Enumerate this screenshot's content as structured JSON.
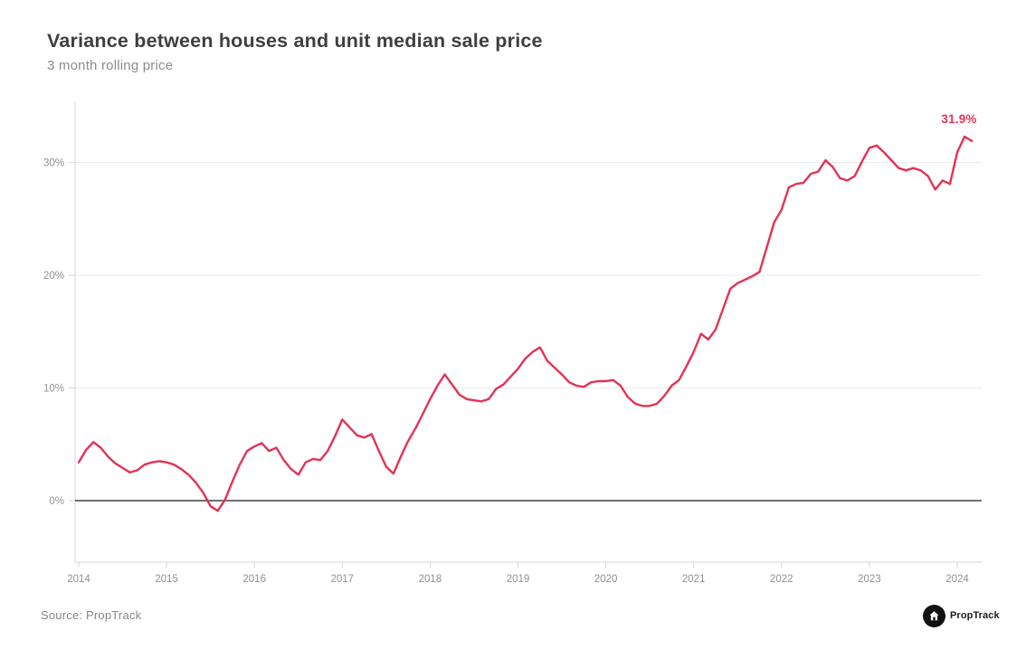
{
  "page": {
    "background": "#ffffff"
  },
  "header": {
    "title": "Variance between houses and unit median sale price",
    "subtitle": "3 month rolling price"
  },
  "chart_data": {
    "type": "line",
    "title": "Variance between houses and unit median sale price",
    "subtitle": "3 month rolling price",
    "x_start": "2014-01",
    "x_interval": "monthly",
    "x_tick_labels": [
      "2014",
      "2015",
      "2016",
      "2017",
      "2018",
      "2019",
      "2020",
      "2021",
      "2022",
      "2023",
      "2024"
    ],
    "y_ticks": [
      0,
      10,
      20,
      30
    ],
    "y_tick_labels": [
      "0%",
      "10%",
      "20%",
      "30%"
    ],
    "ylim": [
      -5.5,
      35
    ],
    "grid": "horizontal light gridlines at 10/20/30 percent, dark baseline at 0 percent",
    "legend": "none",
    "line_color": "#e23355",
    "zero_line_color": "#6f6f6f",
    "axis_color": "#d6d6d6",
    "gridline_color": "#ebebeb",
    "tick_label_color": "#8e9194",
    "end_label": "31.9%",
    "end_value": 31.9,
    "series": [
      {
        "name": "Variance between houses and unit median sale price (3 month rolling)",
        "values": [
          3.4,
          4.5,
          5.2,
          4.7,
          3.9,
          3.3,
          2.9,
          2.5,
          2.7,
          3.2,
          3.4,
          3.5,
          3.4,
          3.2,
          2.8,
          2.3,
          1.6,
          0.7,
          -0.5,
          -0.9,
          0.1,
          1.7,
          3.2,
          4.4,
          4.8,
          5.1,
          4.4,
          4.7,
          3.6,
          2.8,
          2.3,
          3.4,
          3.7,
          3.6,
          4.4,
          5.7,
          7.2,
          6.5,
          5.8,
          5.6,
          5.9,
          4.4,
          3.0,
          2.4,
          3.9,
          5.3,
          6.4,
          7.7,
          9.0,
          10.2,
          11.2,
          10.3,
          9.4,
          9.0,
          8.9,
          8.8,
          9.0,
          9.9,
          10.3,
          11.0,
          11.7,
          12.6,
          13.2,
          13.6,
          12.4,
          11.8,
          11.2,
          10.5,
          10.2,
          10.1,
          10.5,
          10.6,
          10.6,
          10.7,
          10.2,
          9.2,
          8.6,
          8.4,
          8.4,
          8.6,
          9.3,
          10.2,
          10.7,
          11.9,
          13.2,
          14.8,
          14.3,
          15.2,
          17.0,
          18.8,
          19.3,
          19.6,
          19.9,
          20.3,
          22.5,
          24.7,
          25.8,
          27.8,
          28.1,
          28.2,
          29.0,
          29.2,
          30.2,
          29.6,
          28.6,
          28.4,
          28.8,
          30.1,
          31.3,
          31.5,
          30.9,
          30.2,
          29.5,
          29.3,
          29.5,
          29.3,
          28.8,
          27.6,
          28.4,
          28.1,
          30.9,
          32.3,
          31.9
        ]
      }
    ]
  },
  "footer": {
    "source": "Source: PropTrack",
    "logo_text": "PropTrack",
    "logo_icon": "house-in-circle-icon"
  }
}
